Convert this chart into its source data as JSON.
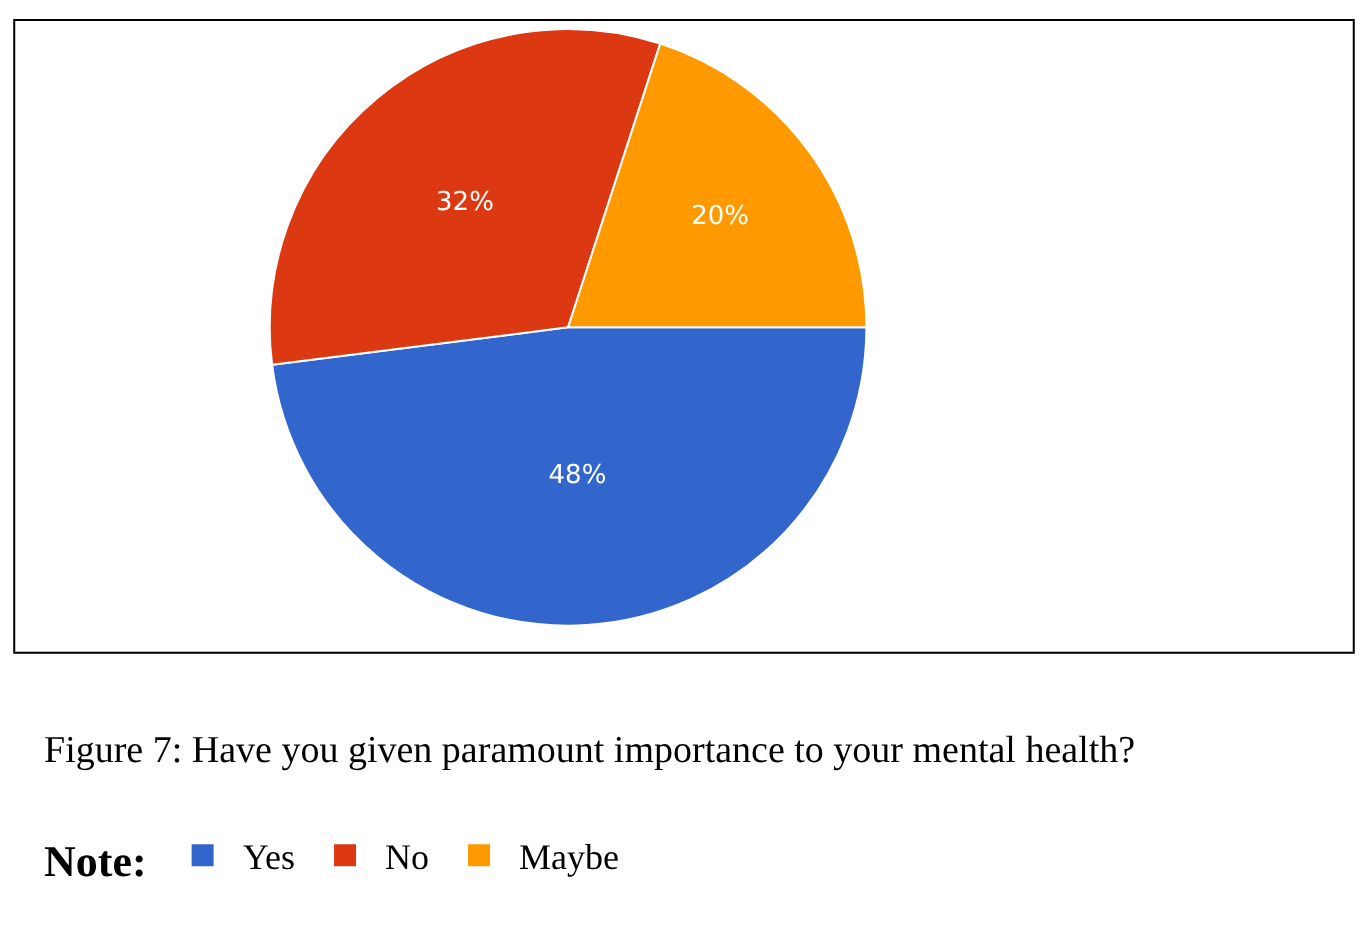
{
  "chart_data": {
    "type": "pie",
    "title": "Figure 7: Have you given paramount importance to your mental health?",
    "legend_title": "Note:",
    "categories": [
      "Yes",
      "No",
      "Maybe"
    ],
    "values": [
      48,
      32,
      20
    ],
    "colors": [
      "#3366cc",
      "#dc3912",
      "#ff9900"
    ],
    "value_labels": [
      "48%",
      "32%",
      "20%"
    ],
    "legend": "bottom"
  }
}
